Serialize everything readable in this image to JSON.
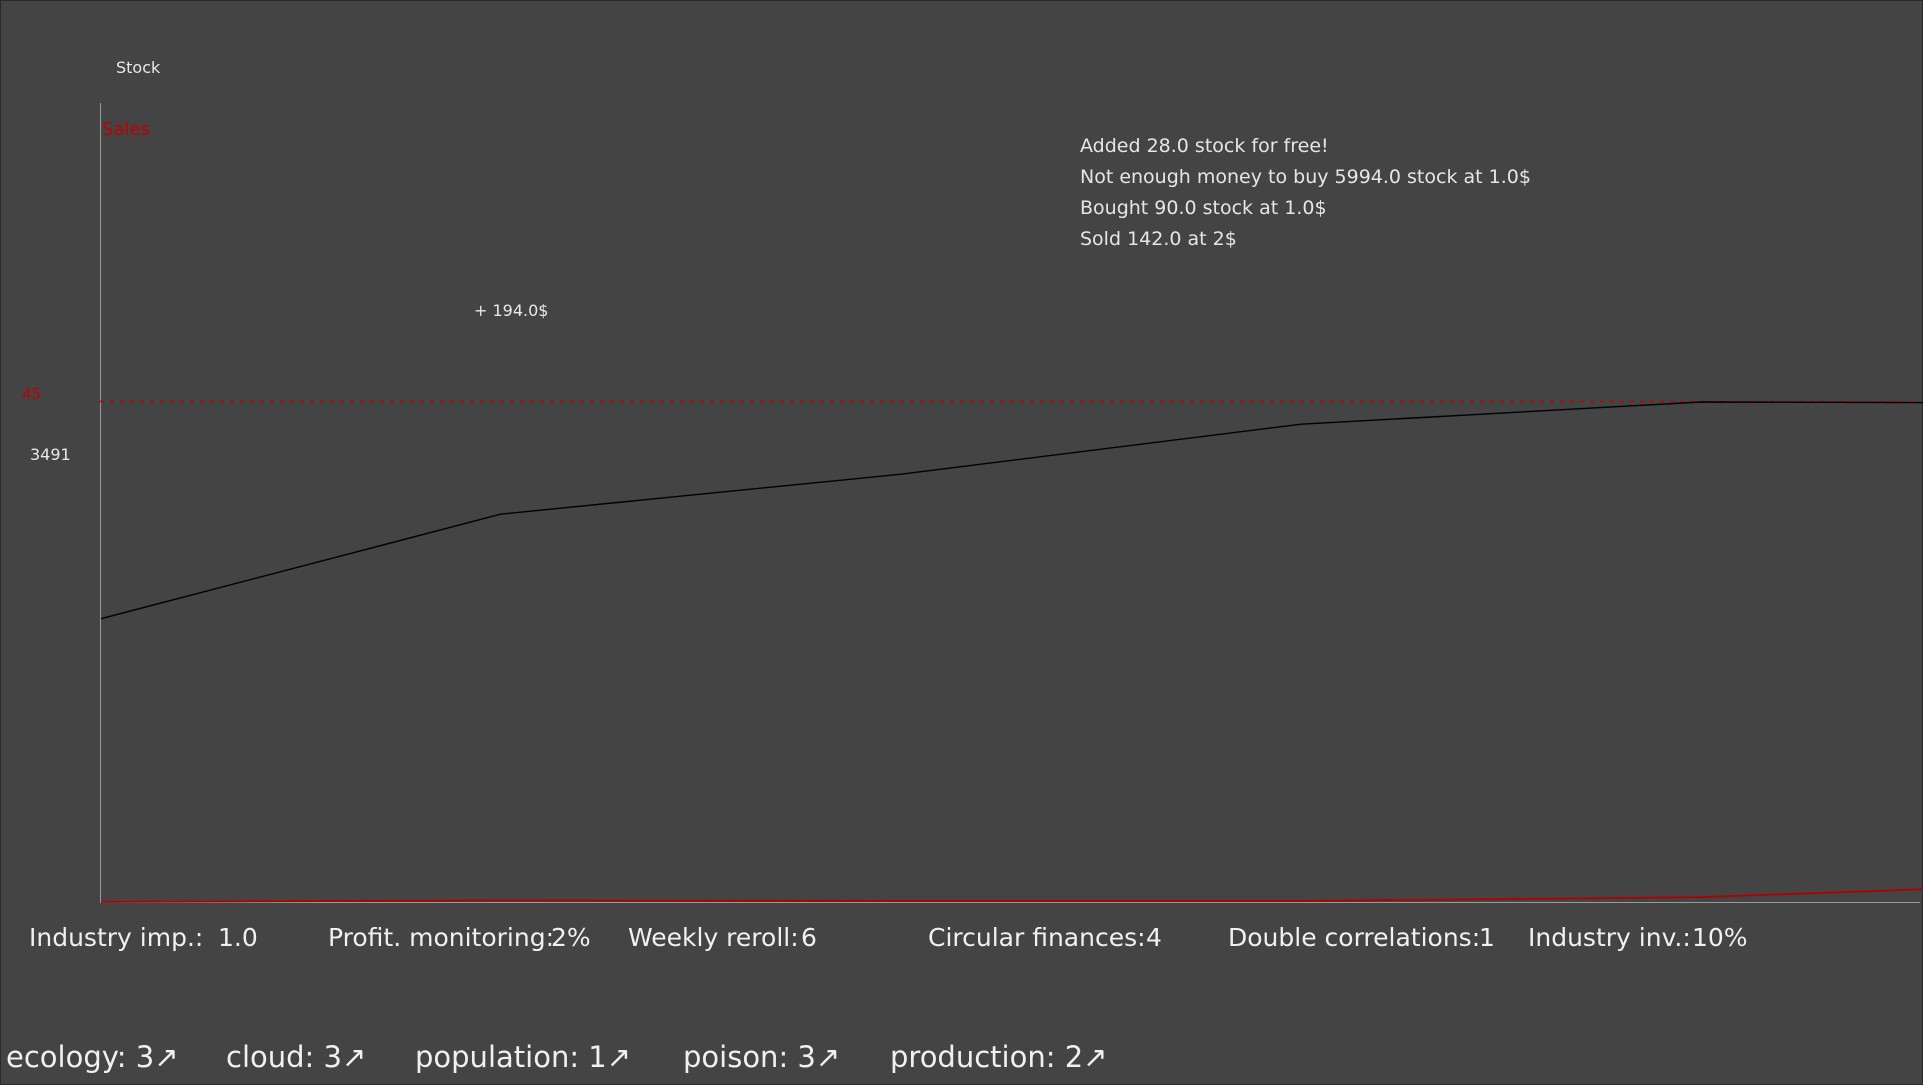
{
  "chart": {
    "stock_label": "Stock",
    "sales_label": "Sales",
    "threshold_label": "45",
    "stock_value_label": "3491",
    "gain_label": "+ 194.0$",
    "colors": {
      "stock": "#000000",
      "sales": "#b00000",
      "threshold": "#c00000",
      "axis": "#9a9a9a"
    }
  },
  "chart_data": {
    "type": "line",
    "title": "",
    "xlabel": "",
    "ylabel": "Stock",
    "ylim": [
      0,
      4500
    ],
    "threshold": 45,
    "series": [
      {
        "name": "Stock",
        "x": [
          0,
          1,
          2,
          3,
          4,
          5
        ],
        "values": [
          2550,
          3491,
          3850,
          4300,
          4500,
          4490
        ]
      },
      {
        "name": "Sales",
        "x": [
          0,
          1,
          2,
          3,
          4,
          5
        ],
        "values": [
          0,
          0.5,
          0.3,
          0.3,
          1.5,
          6
        ]
      }
    ]
  },
  "log": [
    "Added 28.0 stock for free!",
    "Not enough money to buy 5994.0 stock at 1.0$",
    "Bought 90.0 stock at 1.0$",
    "Sold 142.0 at 2$"
  ],
  "stats": [
    {
      "label": "Industry imp.:",
      "value": "1.0"
    },
    {
      "label": "Profit. monitoring:",
      "value": "2%"
    },
    {
      "label": "Weekly reroll:",
      "value": "6"
    },
    {
      "label": "Circular finances:",
      "value": "4"
    },
    {
      "label": "Double correlations:",
      "value": "1"
    },
    {
      "label": "Industry inv.:",
      "value": "10%"
    }
  ],
  "perks": [
    {
      "text": "ecology: 3",
      "icon": "arrow-up-right-icon",
      "glyph": "↗"
    },
    {
      "text": "cloud: 3",
      "icon": "arrow-up-right-icon",
      "glyph": "↗"
    },
    {
      "text": "population: 1",
      "icon": "arrow-up-right-icon",
      "glyph": "↗"
    },
    {
      "text": "poison: 3",
      "icon": "arrow-up-right-icon",
      "glyph": "↗"
    },
    {
      "text": "production: 2",
      "icon": "arrow-up-right-icon",
      "glyph": "↗"
    }
  ]
}
